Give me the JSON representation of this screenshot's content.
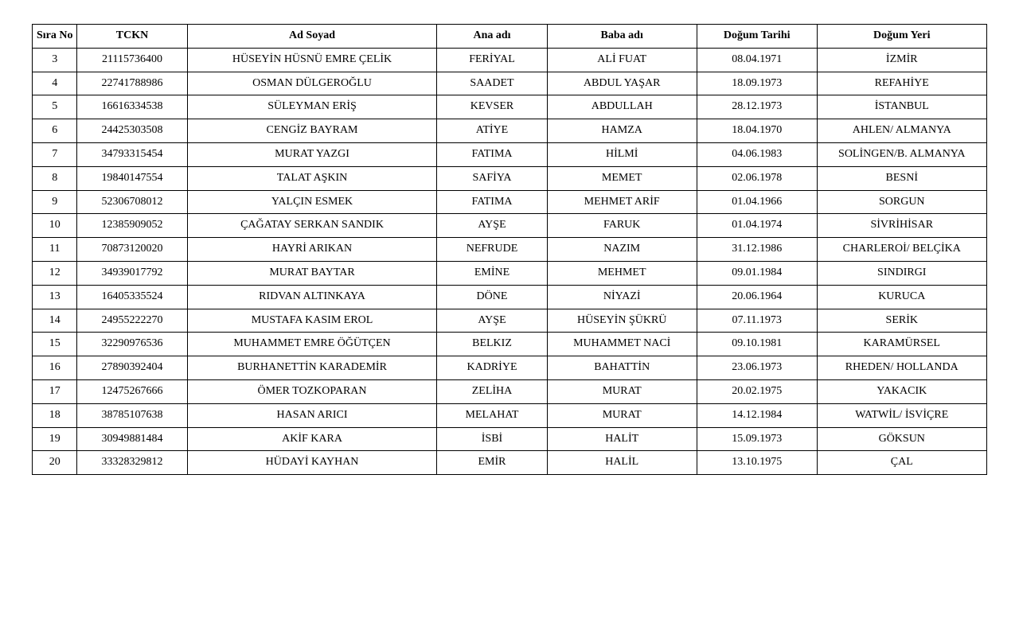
{
  "table": {
    "type": "table",
    "background_color": "#ffffff",
    "border_color": "#000000",
    "text_color": "#000000",
    "font_family": "Times New Roman",
    "header_fontsize": 14,
    "cell_fontsize": 14,
    "columns": [
      {
        "key": "sira",
        "label": "Sıra No",
        "width_pct": 4.5,
        "align": "center"
      },
      {
        "key": "tckn",
        "label": "TCKN",
        "width_pct": 11,
        "align": "center"
      },
      {
        "key": "ad",
        "label": "Ad Soyad",
        "width_pct": 25,
        "align": "center"
      },
      {
        "key": "ana",
        "label": "Ana adı",
        "width_pct": 11,
        "align": "center"
      },
      {
        "key": "baba",
        "label": "Baba adı",
        "width_pct": 15,
        "align": "center"
      },
      {
        "key": "dt",
        "label": "Doğum Tarihi",
        "width_pct": 12,
        "align": "center"
      },
      {
        "key": "dy",
        "label": "Doğum Yeri",
        "width_pct": 17,
        "align": "center"
      }
    ],
    "rows": [
      {
        "sira": "3",
        "tckn": "21115736400",
        "ad": "HÜSEYİN HÜSNÜ EMRE ÇELİK",
        "ana": "FERİYAL",
        "baba": "ALİ FUAT",
        "dt": "08.04.1971",
        "dy": "İZMİR"
      },
      {
        "sira": "4",
        "tckn": "22741788986",
        "ad": "OSMAN DÜLGEROĞLU",
        "ana": "SAADET",
        "baba": "ABDUL YAŞAR",
        "dt": "18.09.1973",
        "dy": "REFAHİYE"
      },
      {
        "sira": "5",
        "tckn": "16616334538",
        "ad": "SÜLEYMAN ERİŞ",
        "ana": "KEVSER",
        "baba": "ABDULLAH",
        "dt": "28.12.1973",
        "dy": "İSTANBUL"
      },
      {
        "sira": "6",
        "tckn": "24425303508",
        "ad": "CENGİZ BAYRAM",
        "ana": "ATİYE",
        "baba": "HAMZA",
        "dt": "18.04.1970",
        "dy": "AHLEN/ ALMANYA"
      },
      {
        "sira": "7",
        "tckn": "34793315454",
        "ad": "MURAT YAZGI",
        "ana": "FATIMA",
        "baba": "HİLMİ",
        "dt": "04.06.1983",
        "dy": "SOLİNGEN/B. ALMANYA"
      },
      {
        "sira": "8",
        "tckn": "19840147554",
        "ad": "TALAT AŞKIN",
        "ana": "SAFİYA",
        "baba": "MEMET",
        "dt": "02.06.1978",
        "dy": "BESNİ"
      },
      {
        "sira": "9",
        "tckn": "52306708012",
        "ad": "YALÇIN ESMEK",
        "ana": "FATIMA",
        "baba": "MEHMET ARİF",
        "dt": "01.04.1966",
        "dy": "SORGUN"
      },
      {
        "sira": "10",
        "tckn": "12385909052",
        "ad": "ÇAĞATAY SERKAN SANDIK",
        "ana": "AYŞE",
        "baba": "FARUK",
        "dt": "01.04.1974",
        "dy": "SİVRİHİSAR"
      },
      {
        "sira": "11",
        "tckn": "70873120020",
        "ad": "HAYRİ ARIKAN",
        "ana": "NEFRUDE",
        "baba": "NAZIM",
        "dt": "31.12.1986",
        "dy": "CHARLEROİ/ BELÇİKA"
      },
      {
        "sira": "12",
        "tckn": "34939017792",
        "ad": "MURAT BAYTAR",
        "ana": "EMİNE",
        "baba": "MEHMET",
        "dt": "09.01.1984",
        "dy": "SINDIRGI"
      },
      {
        "sira": "13",
        "tckn": "16405335524",
        "ad": "RIDVAN ALTINKAYA",
        "ana": "DÖNE",
        "baba": "NİYAZİ",
        "dt": "20.06.1964",
        "dy": "KURUCA"
      },
      {
        "sira": "14",
        "tckn": "24955222270",
        "ad": "MUSTAFA KASIM EROL",
        "ana": "AYŞE",
        "baba": "HÜSEYİN ŞÜKRÜ",
        "dt": "07.11.1973",
        "dy": "SERİK"
      },
      {
        "sira": "15",
        "tckn": "32290976536",
        "ad": "MUHAMMET EMRE ÖĞÜTÇEN",
        "ana": "BELKIZ",
        "baba": "MUHAMMET NACİ",
        "dt": "09.10.1981",
        "dy": "KARAMÜRSEL"
      },
      {
        "sira": "16",
        "tckn": "27890392404",
        "ad": "BURHANETTİN KARADEMİR",
        "ana": "KADRİYE",
        "baba": "BAHATTİN",
        "dt": "23.06.1973",
        "dy": "RHEDEN/ HOLLANDA"
      },
      {
        "sira": "17",
        "tckn": "12475267666",
        "ad": "ÖMER TOZKOPARAN",
        "ana": "ZELİHA",
        "baba": "MURAT",
        "dt": "20.02.1975",
        "dy": "YAKACIK"
      },
      {
        "sira": "18",
        "tckn": "38785107638",
        "ad": "HASAN ARICI",
        "ana": "MELAHAT",
        "baba": "MURAT",
        "dt": "14.12.1984",
        "dy": "WATWİL/ İSVİÇRE"
      },
      {
        "sira": "19",
        "tckn": "30949881484",
        "ad": "AKİF KARA",
        "ana": "İSBİ",
        "baba": "HALİT",
        "dt": "15.09.1973",
        "dy": "GÖKSUN"
      },
      {
        "sira": "20",
        "tckn": "33328329812",
        "ad": "HÜDAYİ KAYHAN",
        "ana": "EMİR",
        "baba": "HALİL",
        "dt": "13.10.1975",
        "dy": "ÇAL"
      }
    ]
  }
}
